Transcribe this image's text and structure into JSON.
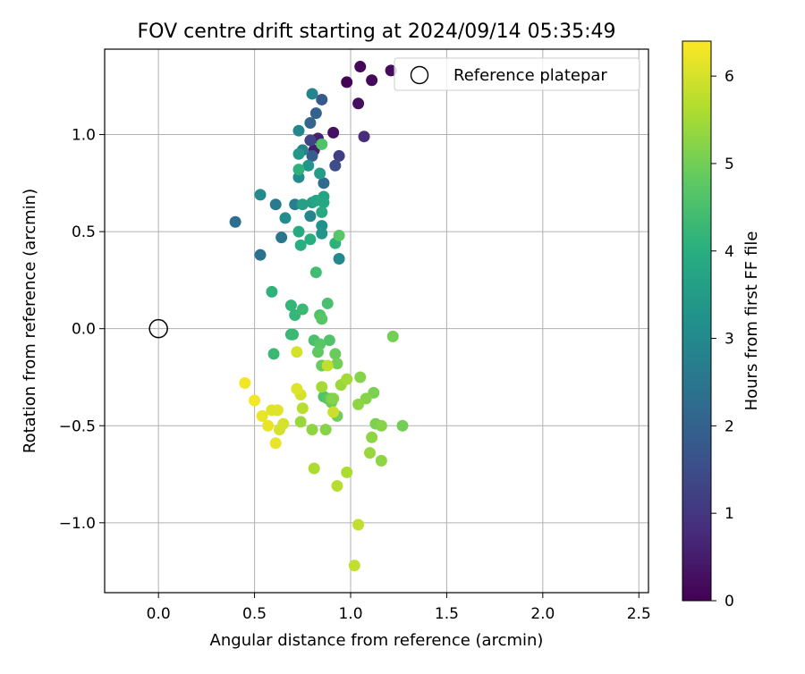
{
  "chart_data": {
    "type": "scatter",
    "title": "FOV centre drift starting at 2024/09/14 05:35:49",
    "xlabel": "Angular distance from reference (arcmin)",
    "ylabel": "Rotation from reference (arcmin)",
    "xlim": [
      -0.28,
      2.55
    ],
    "ylim": [
      -1.36,
      1.44
    ],
    "xticks": [
      0.0,
      0.5,
      1.0,
      1.5,
      2.0,
      2.5
    ],
    "xtick_labels": [
      "0.0",
      "0.5",
      "1.0",
      "1.5",
      "2.0",
      "2.5"
    ],
    "yticks": [
      -1.0,
      -0.5,
      0.0,
      0.5,
      1.0
    ],
    "ytick_labels": [
      "−1.0",
      "−0.5",
      "0.0",
      "0.5",
      "1.0"
    ],
    "grid": true,
    "legend": {
      "label": "Reference platepar",
      "location": "top-right"
    },
    "colorbar": {
      "label": "Hours from first FF file",
      "min": 0,
      "max": 6.4,
      "colormap": "viridis",
      "ticks": [
        0,
        1,
        2,
        3,
        4,
        5,
        6
      ],
      "tick_labels": [
        "0",
        "1",
        "2",
        "3",
        "4",
        "5",
        "6"
      ]
    },
    "reference_point": {
      "x": 0.0,
      "y": 0.0
    },
    "points": [
      {
        "x": 0.98,
        "y": 1.27,
        "h": 0.05
      },
      {
        "x": 1.05,
        "y": 1.35,
        "h": 0.1
      },
      {
        "x": 1.11,
        "y": 1.28,
        "h": 0.15
      },
      {
        "x": 1.21,
        "y": 1.33,
        "h": 0.2
      },
      {
        "x": 1.04,
        "y": 1.16,
        "h": 0.25
      },
      {
        "x": 0.91,
        "y": 1.01,
        "h": 0.3
      },
      {
        "x": 0.81,
        "y": 0.92,
        "h": 0.5
      },
      {
        "x": 0.83,
        "y": 0.98,
        "h": 0.6
      },
      {
        "x": 1.07,
        "y": 0.99,
        "h": 0.8
      },
      {
        "x": 0.94,
        "y": 0.89,
        "h": 1.2
      },
      {
        "x": 0.79,
        "y": 0.97,
        "h": 1.3
      },
      {
        "x": 0.92,
        "y": 0.84,
        "h": 1.5
      },
      {
        "x": 0.85,
        "y": 1.18,
        "h": 1.8
      },
      {
        "x": 0.8,
        "y": 0.89,
        "h": 1.9
      },
      {
        "x": 0.82,
        "y": 1.11,
        "h": 2.0
      },
      {
        "x": 0.79,
        "y": 1.06,
        "h": 2.1
      },
      {
        "x": 0.86,
        "y": 0.75,
        "h": 2.2
      },
      {
        "x": 0.4,
        "y": 0.55,
        "h": 2.3
      },
      {
        "x": 0.53,
        "y": 0.38,
        "h": 2.4
      },
      {
        "x": 0.64,
        "y": 0.47,
        "h": 2.5
      },
      {
        "x": 0.61,
        "y": 0.64,
        "h": 2.6
      },
      {
        "x": 0.71,
        "y": 0.64,
        "h": 2.7
      },
      {
        "x": 0.75,
        "y": 0.92,
        "h": 2.8
      },
      {
        "x": 0.79,
        "y": 0.58,
        "h": 2.9
      },
      {
        "x": 0.8,
        "y": 1.21,
        "h": 2.9
      },
      {
        "x": 0.73,
        "y": 1.02,
        "h": 2.95
      },
      {
        "x": 0.94,
        "y": 0.36,
        "h": 3.0
      },
      {
        "x": 0.53,
        "y": 0.69,
        "h": 3.05
      },
      {
        "x": 0.66,
        "y": 0.57,
        "h": 3.1
      },
      {
        "x": 0.73,
        "y": 0.78,
        "h": 3.1
      },
      {
        "x": 0.85,
        "y": 0.53,
        "h": 3.2
      },
      {
        "x": 0.85,
        "y": 0.49,
        "h": 3.3
      },
      {
        "x": 0.78,
        "y": 0.84,
        "h": 3.3
      },
      {
        "x": 0.73,
        "y": 0.9,
        "h": 3.4
      },
      {
        "x": 0.84,
        "y": 0.8,
        "h": 3.5
      },
      {
        "x": 0.8,
        "y": 0.65,
        "h": 3.6
      },
      {
        "x": 0.75,
        "y": 0.64,
        "h": 3.6
      },
      {
        "x": 0.86,
        "y": 0.68,
        "h": 3.7
      },
      {
        "x": 0.86,
        "y": 0.65,
        "h": 3.8
      },
      {
        "x": 0.82,
        "y": 0.66,
        "h": 3.8
      },
      {
        "x": 0.73,
        "y": 0.5,
        "h": 3.9
      },
      {
        "x": 0.85,
        "y": 0.6,
        "h": 3.9
      },
      {
        "x": 0.74,
        "y": 0.43,
        "h": 4.0
      },
      {
        "x": 0.79,
        "y": 0.46,
        "h": 4.0
      },
      {
        "x": 0.73,
        "y": 0.82,
        "h": 4.1
      },
      {
        "x": 0.92,
        "y": 0.44,
        "h": 4.1
      },
      {
        "x": 0.59,
        "y": 0.19,
        "h": 4.1
      },
      {
        "x": 0.69,
        "y": 0.12,
        "h": 4.2
      },
      {
        "x": 0.71,
        "y": 0.07,
        "h": 4.2
      },
      {
        "x": 0.75,
        "y": 0.1,
        "h": 4.3
      },
      {
        "x": 0.69,
        "y": -0.03,
        "h": 4.2
      },
      {
        "x": 0.7,
        "y": -0.03,
        "h": 4.3
      },
      {
        "x": 0.6,
        "y": -0.13,
        "h": 4.3
      },
      {
        "x": 0.82,
        "y": 0.29,
        "h": 4.4
      },
      {
        "x": 0.88,
        "y": 0.13,
        "h": 4.5
      },
      {
        "x": 0.84,
        "y": 0.07,
        "h": 4.6
      },
      {
        "x": 0.85,
        "y": 0.05,
        "h": 4.7
      },
      {
        "x": 0.81,
        "y": -0.06,
        "h": 4.5
      },
      {
        "x": 0.89,
        "y": -0.06,
        "h": 4.6
      },
      {
        "x": 0.84,
        "y": -0.08,
        "h": 4.7
      },
      {
        "x": 0.83,
        "y": -0.12,
        "h": 4.8
      },
      {
        "x": 0.85,
        "y": -0.19,
        "h": 4.8
      },
      {
        "x": 0.85,
        "y": -0.19,
        "h": 4.9
      },
      {
        "x": 0.92,
        "y": -0.13,
        "h": 4.9
      },
      {
        "x": 0.93,
        "y": -0.18,
        "h": 5.0
      },
      {
        "x": 0.94,
        "y": 0.48,
        "h": 4.7
      },
      {
        "x": 0.85,
        "y": 0.95,
        "h": 4.6
      },
      {
        "x": 0.86,
        "y": -0.35,
        "h": 4.6
      },
      {
        "x": 0.88,
        "y": -0.36,
        "h": 4.7
      },
      {
        "x": 0.9,
        "y": -0.38,
        "h": 4.9
      },
      {
        "x": 0.93,
        "y": -0.45,
        "h": 5.0
      },
      {
        "x": 0.9,
        "y": -0.36,
        "h": 5.1
      },
      {
        "x": 0.91,
        "y": -0.36,
        "h": 5.2
      },
      {
        "x": 0.87,
        "y": -0.52,
        "h": 5.2
      },
      {
        "x": 0.8,
        "y": -0.52,
        "h": 5.3
      },
      {
        "x": 0.74,
        "y": -0.48,
        "h": 5.4
      },
      {
        "x": 1.05,
        "y": -0.25,
        "h": 5.2
      },
      {
        "x": 1.22,
        "y": -0.04,
        "h": 5.0
      },
      {
        "x": 1.12,
        "y": -0.33,
        "h": 5.1
      },
      {
        "x": 1.08,
        "y": -0.36,
        "h": 5.2
      },
      {
        "x": 1.04,
        "y": -0.39,
        "h": 5.3
      },
      {
        "x": 1.13,
        "y": -0.49,
        "h": 5.1
      },
      {
        "x": 1.16,
        "y": -0.5,
        "h": 5.2
      },
      {
        "x": 1.27,
        "y": -0.5,
        "h": 5.0
      },
      {
        "x": 1.11,
        "y": -0.56,
        "h": 5.3
      },
      {
        "x": 1.1,
        "y": -0.64,
        "h": 5.4
      },
      {
        "x": 1.16,
        "y": -0.68,
        "h": 5.3
      },
      {
        "x": 0.95,
        "y": -0.29,
        "h": 5.4
      },
      {
        "x": 0.98,
        "y": -0.26,
        "h": 5.5
      },
      {
        "x": 0.85,
        "y": -0.3,
        "h": 5.5
      },
      {
        "x": 0.81,
        "y": -0.72,
        "h": 5.6
      },
      {
        "x": 0.98,
        "y": -0.74,
        "h": 5.6
      },
      {
        "x": 0.93,
        "y": -0.81,
        "h": 5.7
      },
      {
        "x": 1.04,
        "y": -1.01,
        "h": 5.8
      },
      {
        "x": 1.02,
        "y": -1.22,
        "h": 5.8
      },
      {
        "x": 0.75,
        "y": -0.41,
        "h": 5.7
      },
      {
        "x": 0.88,
        "y": -0.19,
        "h": 5.8
      },
      {
        "x": 0.91,
        "y": -0.43,
        "h": 5.9
      },
      {
        "x": 0.72,
        "y": -0.12,
        "h": 6.0
      },
      {
        "x": 0.74,
        "y": -0.34,
        "h": 6.0
      },
      {
        "x": 0.72,
        "y": -0.31,
        "h": 6.1
      },
      {
        "x": 0.45,
        "y": -0.28,
        "h": 6.3
      },
      {
        "x": 0.5,
        "y": -0.37,
        "h": 6.3
      },
      {
        "x": 0.54,
        "y": -0.45,
        "h": 6.2
      },
      {
        "x": 0.57,
        "y": -0.5,
        "h": 6.2
      },
      {
        "x": 0.59,
        "y": -0.42,
        "h": 6.1
      },
      {
        "x": 0.62,
        "y": -0.42,
        "h": 6.1
      },
      {
        "x": 0.63,
        "y": -0.52,
        "h": 6.0
      },
      {
        "x": 0.65,
        "y": -0.49,
        "h": 6.0
      },
      {
        "x": 0.61,
        "y": -0.59,
        "h": 6.2
      }
    ]
  }
}
